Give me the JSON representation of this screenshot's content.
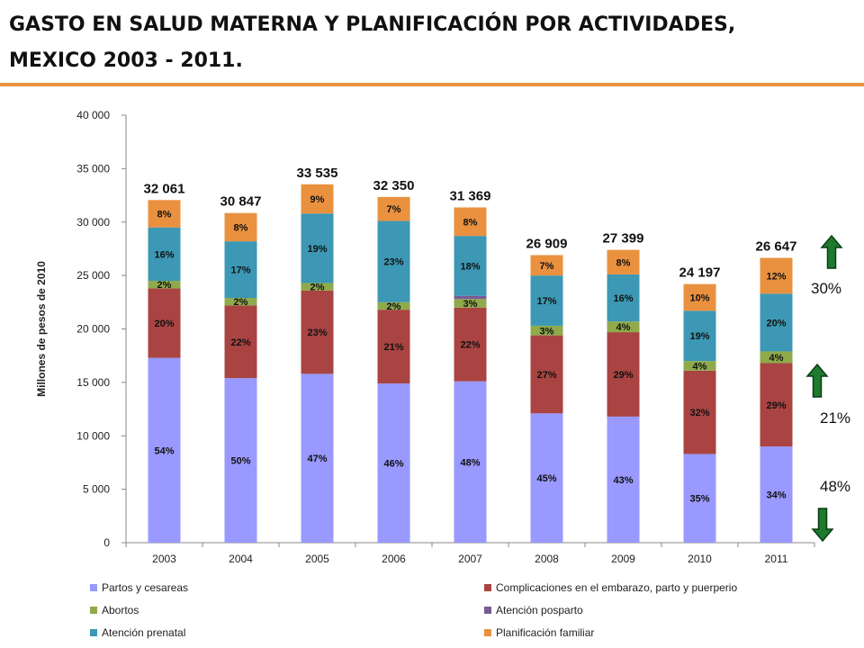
{
  "title": {
    "line1": "GASTO EN SALUD MATERNA Y PLANIFICACIÓN  POR ACTIVIDADES,",
    "line2": "MEXICO 2003 - 2011."
  },
  "accent_color": "#e9913f",
  "chart_data": {
    "type": "bar",
    "stacked": true,
    "categories": [
      "2003",
      "2004",
      "2005",
      "2006",
      "2007",
      "2008",
      "2009",
      "2010",
      "2011"
    ],
    "ylabel": "Millones de pesos de 2010",
    "ylim": [
      0,
      40000
    ],
    "yticks": [
      0,
      5000,
      10000,
      15000,
      20000,
      25000,
      30000,
      35000,
      40000
    ],
    "ytick_labels": [
      "0",
      "5 000",
      "10 000",
      "15 000",
      "20 000",
      "25 000",
      "30 000",
      "35 000",
      "40 000"
    ],
    "grid": false,
    "legend_position": "bottom",
    "totals": [
      32061,
      30847,
      33535,
      32350,
      31369,
      26909,
      27399,
      24197,
      26647
    ],
    "total_labels": [
      "32 061",
      "30 847",
      "33 535",
      "32 350",
      "31 369",
      "26 909",
      "27 399",
      "24 197",
      "26 647"
    ],
    "series": [
      {
        "name": "Partos y cesareas",
        "color": "#9999ff",
        "values": [
          17300,
          15400,
          15800,
          14900,
          15100,
          12100,
          11800,
          8300,
          9000
        ],
        "labels": [
          "54%",
          "50%",
          "47%",
          "46%",
          "48%",
          "45%",
          "43%",
          "35%",
          "34%"
        ]
      },
      {
        "name": "Complicaciones en el embarazo, parto y puerperio",
        "color": "#a94442",
        "values": [
          6500,
          6800,
          7800,
          6900,
          6900,
          7300,
          7900,
          7800,
          7800
        ],
        "labels": [
          "20%",
          "22%",
          "23%",
          "21%",
          "22%",
          "27%",
          "29%",
          "32%",
          "29%"
        ]
      },
      {
        "name": "Abortos",
        "color": "#8faa4b",
        "values": [
          700,
          700,
          700,
          700,
          800,
          900,
          1000,
          900,
          1100
        ],
        "labels": [
          "2%",
          "2%",
          "2%",
          "2%",
          "3%",
          "3%",
          "4%",
          "4%",
          "4%"
        ]
      },
      {
        "name": "Atención posparto",
        "color": "#7a5b94",
        "values": [
          0,
          0,
          0,
          0,
          300,
          0,
          0,
          0,
          0
        ],
        "labels": [
          "",
          "",
          "",
          "",
          "",
          "",
          "",
          "",
          ""
        ]
      },
      {
        "name": "Atención prenatal",
        "color": "#3c98b4",
        "values": [
          5000,
          5300,
          6500,
          7600,
          5600,
          4700,
          4400,
          4700,
          5400
        ],
        "labels": [
          "16%",
          "17%",
          "19%",
          "23%",
          "18%",
          "17%",
          "16%",
          "19%",
          "20%"
        ]
      },
      {
        "name": "Planificación familiar",
        "color": "#e9913f",
        "values": [
          2561,
          2647,
          2735,
          2250,
          2669,
          1909,
          2299,
          2497,
          3347
        ],
        "labels": [
          "8%",
          "8%",
          "9%",
          "7%",
          "8%",
          "7%",
          "8%",
          "10%",
          "12%"
        ]
      }
    ]
  },
  "annotations": [
    {
      "text": "30%",
      "arrow": "up",
      "color": "#1e7a2e"
    },
    {
      "text": "21%",
      "arrow": "up",
      "color": "#1e7a2e"
    },
    {
      "text": "48%",
      "arrow": "down",
      "color": "#1e7a2e"
    }
  ]
}
